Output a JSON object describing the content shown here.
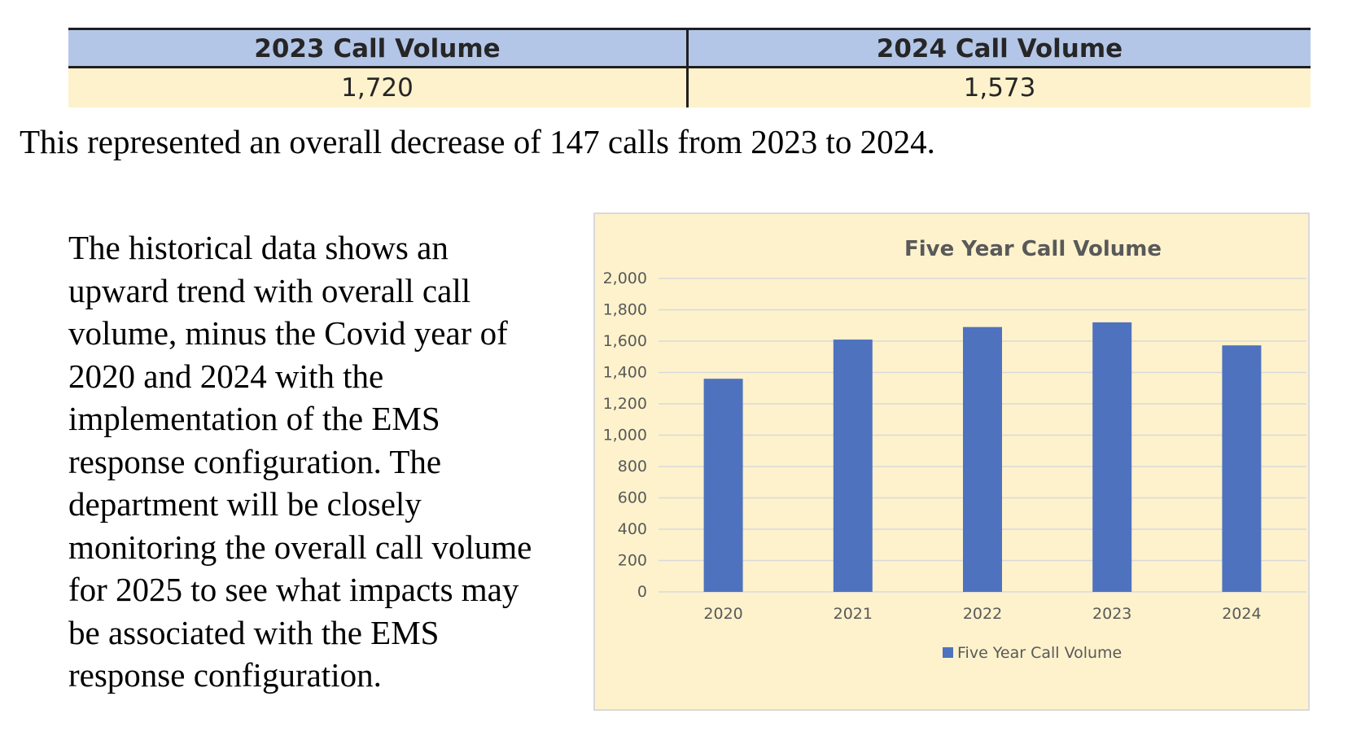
{
  "table": {
    "headers": [
      "2023 Call Volume",
      "2024 Call Volume"
    ],
    "values": [
      "1,720",
      "1,573"
    ]
  },
  "summary_text": "This represented an overall decrease of 147 calls from 2023 to 2024.",
  "paragraph_lines": [
    "The historical data shows an",
    "upward trend with overall call",
    "volume, minus the Covid year of",
    "2020 and 2024 with the",
    "implementation of the EMS",
    "response configuration. The",
    "department will be closely",
    "monitoring the overall call volume",
    "for 2025 to see what impacts may",
    "be associated with the EMS",
    "response configuration."
  ],
  "chart_data": {
    "type": "bar",
    "title": "Five Year Call Volume",
    "categories": [
      "2020",
      "2021",
      "2022",
      "2023",
      "2024"
    ],
    "series": [
      {
        "name": "Five Year Call Volume",
        "values": [
          1360,
          1610,
          1690,
          1720,
          1573
        ]
      }
    ],
    "ylim": [
      0,
      2000
    ],
    "yticks": [
      0,
      200,
      400,
      600,
      800,
      1000,
      1200,
      1400,
      1600,
      1800,
      2000
    ],
    "ytick_labels": [
      "0",
      "200",
      "400",
      "600",
      "800",
      "1,000",
      "1,200",
      "1,400",
      "1,600",
      "1,800",
      "2,000"
    ],
    "grid": true,
    "legend_position": "bottom",
    "colors": {
      "bar": "#4f72be",
      "grid": "#d9d9d9",
      "background": "#fdf2cc"
    }
  }
}
